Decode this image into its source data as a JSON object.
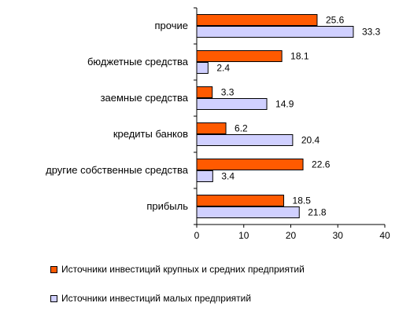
{
  "chart_data": {
    "type": "bar",
    "orientation": "horizontal",
    "categories": [
      "прочие",
      "бюджетные средства",
      "заемные средства",
      "кредиты банков",
      "другие собственные средства",
      "прибыль"
    ],
    "series": [
      {
        "name": "Источники инвестиций крупных и средних предприятий",
        "values": [
          25.6,
          18.1,
          3.3,
          6.2,
          22.6,
          18.5
        ],
        "color": "#FF5A00"
      },
      {
        "name": "Источники инвестиций малых предприятий",
        "values": [
          33.3,
          2.4,
          14.9,
          20.4,
          3.4,
          21.8
        ],
        "color": "#D0D0FF"
      }
    ],
    "xlim": [
      0,
      40
    ],
    "xticks": [
      0,
      10,
      20,
      30,
      40
    ],
    "grid": false,
    "legend_position": "bottom"
  }
}
